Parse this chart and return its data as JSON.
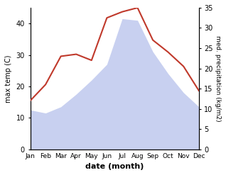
{
  "months": [
    "Jan",
    "Feb",
    "Mar",
    "Apr",
    "May",
    "Jun",
    "Jul",
    "Aug",
    "Sep",
    "Oct",
    "Nov",
    "Dec"
  ],
  "max_temp": [
    12.5,
    11.5,
    13.5,
    17.5,
    22.0,
    27.0,
    41.5,
    41.0,
    31.0,
    24.0,
    18.0,
    13.5
  ],
  "precipitation": [
    12.0,
    16.0,
    23.0,
    23.5,
    22.0,
    32.5,
    34.0,
    35.0,
    27.0,
    24.0,
    20.5,
    14.5
  ],
  "temp_fill_color": "#c8d0f0",
  "precip_line_color": "#c0392b",
  "bg_color": "#ffffff",
  "ylabel_left": "max temp (C)",
  "ylabel_right": "med. precipitation (kg/m2)",
  "xlabel": "date (month)",
  "ylim_left": [
    0,
    45
  ],
  "ylim_right": [
    0,
    35
  ],
  "yticks_left": [
    0,
    10,
    20,
    30,
    40
  ],
  "yticks_right": [
    0,
    5,
    10,
    15,
    20,
    25,
    30,
    35
  ]
}
